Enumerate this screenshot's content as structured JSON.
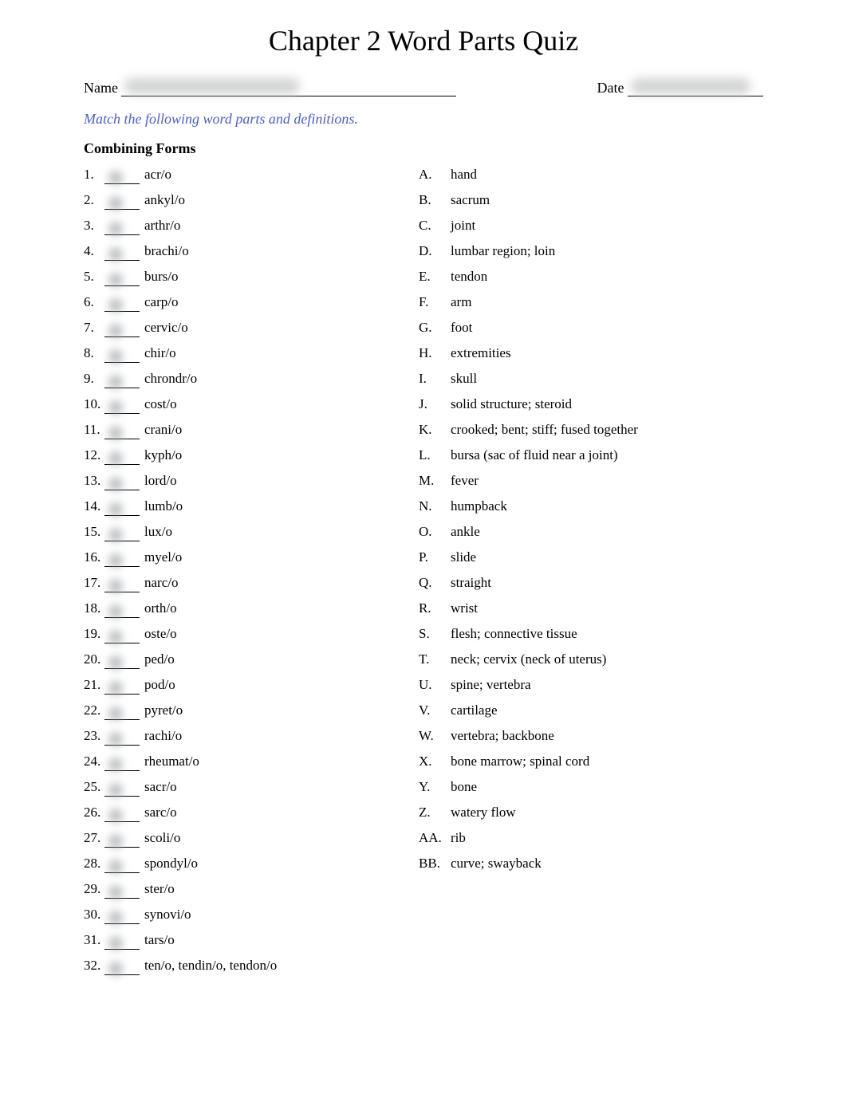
{
  "title": "Chapter 2 Word Parts Quiz",
  "name_label": "Name",
  "date_label": "Date",
  "instructions": "Match the following word parts and definitions.",
  "section_title": "Combining Forms",
  "colors": {
    "text": "#000000",
    "instruction": "#4a5fd0",
    "background": "#ffffff",
    "blur": "#c8c9ca"
  },
  "left_items": [
    {
      "n": "1.",
      "term": "acr/o"
    },
    {
      "n": "2.",
      "term": "ankyl/o"
    },
    {
      "n": "3.",
      "term": "arthr/o"
    },
    {
      "n": "4.",
      "term": "brachi/o"
    },
    {
      "n": "5.",
      "term": "burs/o"
    },
    {
      "n": "6.",
      "term": "carp/o"
    },
    {
      "n": "7.",
      "term": "cervic/o"
    },
    {
      "n": "8.",
      "term": "chir/o"
    },
    {
      "n": "9.",
      "term": "chrondr/o"
    },
    {
      "n": "10.",
      "term": "cost/o"
    },
    {
      "n": "11.",
      "term": "crani/o"
    },
    {
      "n": "12.",
      "term": "kyph/o"
    },
    {
      "n": "13.",
      "term": "lord/o"
    },
    {
      "n": "14.",
      "term": "lumb/o"
    },
    {
      "n": "15.",
      "term": "lux/o"
    },
    {
      "n": "16.",
      "term": "myel/o"
    },
    {
      "n": "17.",
      "term": "narc/o"
    },
    {
      "n": "18.",
      "term": "orth/o"
    },
    {
      "n": "19.",
      "term": "oste/o"
    },
    {
      "n": "20.",
      "term": "ped/o"
    },
    {
      "n": "21.",
      "term": "pod/o"
    },
    {
      "n": "22.",
      "term": "pyret/o"
    },
    {
      "n": "23.",
      "term": "rachi/o"
    },
    {
      "n": "24.",
      "term": "rheumat/o"
    },
    {
      "n": "25.",
      "term": "sacr/o"
    },
    {
      "n": "26.",
      "term": "sarc/o"
    },
    {
      "n": "27.",
      "term": "scoli/o"
    },
    {
      "n": "28.",
      "term": "spondyl/o"
    },
    {
      "n": "29.",
      "term": "ster/o"
    },
    {
      "n": "30.",
      "term": "synovi/o"
    },
    {
      "n": "31.",
      "term": "tars/o"
    },
    {
      "n": "32.",
      "term": "ten/o, tendin/o, tendon/o"
    }
  ],
  "right_items": [
    {
      "l": "A.",
      "d": "hand"
    },
    {
      "l": "B.",
      "d": "sacrum"
    },
    {
      "l": "C.",
      "d": "joint"
    },
    {
      "l": "D.",
      "d": "lumbar region; loin"
    },
    {
      "l": "E.",
      "d": "tendon"
    },
    {
      "l": "F.",
      "d": "arm"
    },
    {
      "l": "G.",
      "d": "foot"
    },
    {
      "l": "H.",
      "d": "extremities"
    },
    {
      "l": "I.",
      "d": "skull"
    },
    {
      "l": "J.",
      "d": "solid structure; steroid"
    },
    {
      "l": "K.",
      "d": "crooked; bent; stiff; fused together"
    },
    {
      "l": "L.",
      "d": "bursa (sac of fluid near a joint)"
    },
    {
      "l": "M.",
      "d": "fever"
    },
    {
      "l": "N.",
      "d": "humpback"
    },
    {
      "l": "O.",
      "d": "ankle"
    },
    {
      "l": "P.",
      "d": "slide"
    },
    {
      "l": "Q.",
      "d": "straight"
    },
    {
      "l": "R.",
      "d": "wrist"
    },
    {
      "l": "S.",
      "d": "flesh; connective tissue"
    },
    {
      "l": "T.",
      "d": "neck; cervix (neck of uterus)"
    },
    {
      "l": "U.",
      "d": "spine; vertebra"
    },
    {
      "l": "V.",
      "d": "cartilage"
    },
    {
      "l": "W.",
      "d": "vertebra; backbone"
    },
    {
      "l": "X.",
      "d": "bone marrow; spinal cord"
    },
    {
      "l": "Y.",
      "d": "bone"
    },
    {
      "l": "Z.",
      "d": "watery flow"
    },
    {
      "l": "AA.",
      "d": "rib"
    },
    {
      "l": "BB.",
      "d": "curve; swayback"
    }
  ]
}
